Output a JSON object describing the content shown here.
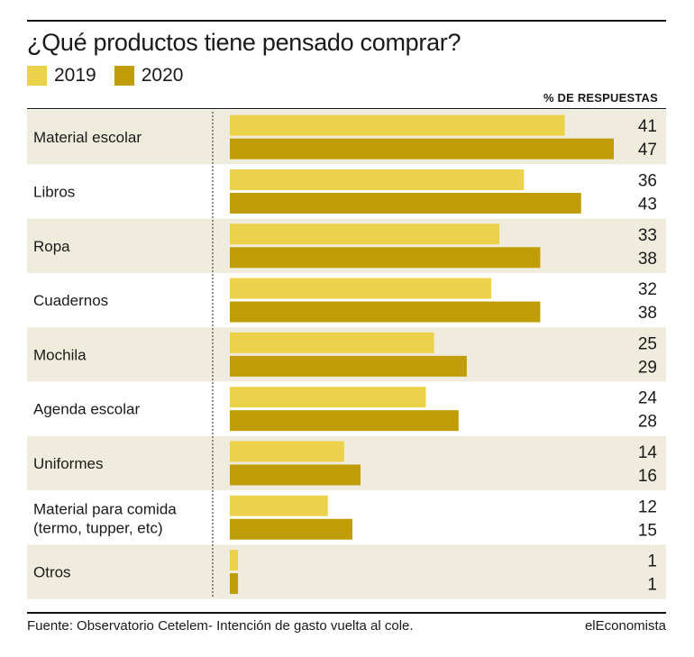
{
  "title": "¿Qué productos tiene pensado comprar?",
  "unit_label": "% DE RESPUESTAS",
  "source": "Fuente: Observatorio Cetelem- Intención de gasto vuelta al cole.",
  "brand": "elEconomista",
  "colors": {
    "series_2019": "#ecd24a",
    "series_2020": "#c09d06",
    "band": "#f0ecdd"
  },
  "chart_data": {
    "type": "bar",
    "orientation": "horizontal",
    "title": "¿Qué productos tiene pensado comprar?",
    "xlabel": "% DE RESPUESTAS",
    "ylabel": "",
    "xlim": [
      0,
      47
    ],
    "legend": "top-left",
    "grid": false,
    "categories": [
      [
        "Material escolar"
      ],
      [
        "Libros"
      ],
      [
        "Ropa"
      ],
      [
        "Cuadernos"
      ],
      [
        "Mochila"
      ],
      [
        "Agenda escolar"
      ],
      [
        "Uniformes"
      ],
      [
        "Material para comida",
        "(termo, tupper, etc)"
      ],
      [
        "Otros"
      ]
    ],
    "series": [
      {
        "name": "2019",
        "values": [
          41,
          36,
          33,
          32,
          25,
          24,
          14,
          12,
          1
        ]
      },
      {
        "name": "2020",
        "values": [
          47,
          43,
          38,
          38,
          29,
          28,
          16,
          15,
          1
        ]
      }
    ]
  }
}
